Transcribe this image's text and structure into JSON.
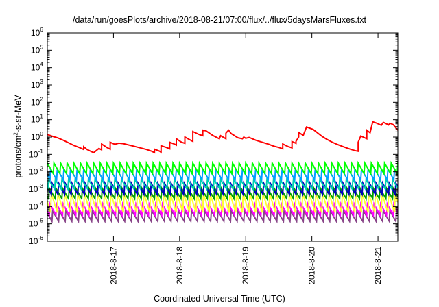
{
  "chart_data": {
    "type": "line",
    "title": "/data/run/goesPlots/archive/2018-08-21/07:00/flux/../flux/5daysMarsFluxes.txt",
    "xlabel": "Coordinated Universal Time (UTC)",
    "ylabel": {
      "prefix": "protons/cm",
      "sup": "2",
      "suffix": "-s-sr-MeV"
    },
    "y_scale": "log",
    "ylim": [
      1e-06,
      1000000.0
    ],
    "y_ticks": [
      {
        "base": "10",
        "exp": "-6",
        "value": -6
      },
      {
        "base": "10",
        "exp": "-5",
        "value": -5
      },
      {
        "base": "10",
        "exp": "-4",
        "value": -4
      },
      {
        "base": "10",
        "exp": "-3",
        "value": -3
      },
      {
        "base": "10",
        "exp": "-2",
        "value": -2
      },
      {
        "base": "10",
        "exp": "-1",
        "value": -1
      },
      {
        "base": "10",
        "exp": "0",
        "value": 0
      },
      {
        "base": "10",
        "exp": "1",
        "value": 1
      },
      {
        "base": "10",
        "exp": "2",
        "value": 2
      },
      {
        "base": "10",
        "exp": "3",
        "value": 3
      },
      {
        "base": "10",
        "exp": "4",
        "value": 4
      },
      {
        "base": "10",
        "exp": "5",
        "value": 5
      },
      {
        "base": "10",
        "exp": "6",
        "value": 6
      }
    ],
    "xlim_days": [
      0,
      5.3
    ],
    "x_ticks": [
      {
        "label": "2018-8-17",
        "day": 1
      },
      {
        "label": "2018-8-18",
        "day": 2
      },
      {
        "label": "2018-8-19",
        "day": 3
      },
      {
        "label": "2018-8-20",
        "day": 4
      },
      {
        "label": "2018-8-21",
        "day": 5
      }
    ],
    "grid": false,
    "series": [
      {
        "color": "#ff0000",
        "points": [
          [
            0.0,
            0.15
          ],
          [
            0.08,
            0.04
          ],
          [
            0.16,
            -0.05
          ],
          [
            0.24,
            -0.18
          ],
          [
            0.32,
            -0.33
          ],
          [
            0.4,
            -0.48
          ],
          [
            0.48,
            -0.6
          ],
          [
            0.55,
            -0.72
          ],
          [
            0.55,
            -0.56
          ],
          [
            0.6,
            -0.72
          ],
          [
            0.66,
            -0.83
          ],
          [
            0.7,
            -0.9
          ],
          [
            0.78,
            -0.66
          ],
          [
            0.82,
            -0.74
          ],
          [
            0.82,
            -0.4
          ],
          [
            0.9,
            -0.6
          ],
          [
            0.95,
            -0.7
          ],
          [
            0.95,
            -0.3
          ],
          [
            1.02,
            -0.42
          ],
          [
            1.08,
            -0.35
          ],
          [
            1.15,
            -0.38
          ],
          [
            1.3,
            -0.52
          ],
          [
            1.4,
            -0.62
          ],
          [
            1.5,
            -0.72
          ],
          [
            1.58,
            -0.82
          ],
          [
            1.62,
            -0.9
          ],
          [
            1.62,
            -0.7
          ],
          [
            1.7,
            -0.82
          ],
          [
            1.72,
            -0.88
          ],
          [
            1.72,
            -0.5
          ],
          [
            1.8,
            -0.6
          ],
          [
            1.85,
            -0.68
          ],
          [
            1.85,
            -0.3
          ],
          [
            1.93,
            -0.42
          ],
          [
            1.95,
            -0.46
          ],
          [
            1.95,
            -0.1
          ],
          [
            2.03,
            -0.3
          ],
          [
            2.08,
            -0.36
          ],
          [
            2.08,
            0.0
          ],
          [
            2.15,
            -0.15
          ],
          [
            2.2,
            -0.25
          ],
          [
            2.2,
            0.32
          ],
          [
            2.3,
            0.14
          ],
          [
            2.35,
            0.08
          ],
          [
            2.35,
            0.4
          ],
          [
            2.4,
            0.36
          ],
          [
            2.5,
            0.1
          ],
          [
            2.6,
            -0.1
          ],
          [
            2.62,
            0.08
          ],
          [
            2.7,
            -0.1
          ],
          [
            2.7,
            0.22
          ],
          [
            2.74,
            0.4
          ],
          [
            2.78,
            0.2
          ],
          [
            2.88,
            -0.04
          ],
          [
            2.95,
            -0.1
          ],
          [
            2.97,
            0.0
          ],
          [
            3.0,
            -0.07
          ],
          [
            3.05,
            -0.02
          ],
          [
            3.15,
            -0.18
          ],
          [
            3.25,
            -0.3
          ],
          [
            3.35,
            -0.42
          ],
          [
            3.42,
            -0.52
          ],
          [
            3.5,
            -0.6
          ],
          [
            3.56,
            -0.68
          ],
          [
            3.56,
            -0.4
          ],
          [
            3.64,
            -0.55
          ],
          [
            3.7,
            -0.62
          ],
          [
            3.7,
            -0.26
          ],
          [
            3.76,
            -0.36
          ],
          [
            3.76,
            -0.25
          ],
          [
            3.8,
            0.0
          ],
          [
            3.8,
            0.27
          ],
          [
            3.87,
            0.1
          ],
          [
            3.92,
            0.58
          ],
          [
            4.02,
            0.44
          ],
          [
            4.08,
            0.26
          ],
          [
            4.15,
            0.05
          ],
          [
            4.22,
            -0.12
          ],
          [
            4.3,
            -0.28
          ],
          [
            4.38,
            -0.42
          ],
          [
            4.45,
            -0.52
          ],
          [
            4.52,
            -0.62
          ],
          [
            4.58,
            -0.7
          ],
          [
            4.65,
            -0.78
          ],
          [
            4.7,
            -0.82
          ],
          [
            4.7,
            -0.3
          ],
          [
            4.74,
            0.06
          ],
          [
            4.83,
            -0.1
          ],
          [
            4.83,
            0.4
          ],
          [
            4.88,
            0.25
          ],
          [
            4.92,
            0.88
          ],
          [
            4.98,
            0.8
          ],
          [
            5.05,
            0.68
          ],
          [
            5.08,
            0.85
          ],
          [
            5.12,
            0.78
          ],
          [
            5.16,
            0.7
          ],
          [
            5.18,
            0.8
          ],
          [
            5.23,
            0.72
          ],
          [
            5.26,
            0.58
          ],
          [
            5.3,
            0.4
          ]
        ]
      },
      {
        "color": "#00ff00",
        "saw": {
          "top": -1.5,
          "bottom": -2.1,
          "period": 0.1,
          "phase": 0.0
        }
      },
      {
        "color": "#00a0ff",
        "saw": {
          "top": -1.85,
          "bottom": -2.45,
          "period": 0.1,
          "phase": 0.05
        }
      },
      {
        "color": "#00d0b0",
        "saw": {
          "top": -2.45,
          "bottom": -3.0,
          "period": 0.1,
          "phase": 0.02
        }
      },
      {
        "color": "#0000c0",
        "saw": {
          "top": -2.65,
          "bottom": -3.3,
          "period": 0.1,
          "phase": 0.07
        }
      },
      {
        "color": "#00a000",
        "saw": {
          "top": -2.95,
          "bottom": -3.55,
          "period": 0.1,
          "phase": 0.03
        }
      },
      {
        "color": "#ffff33",
        "saw": {
          "top": -3.25,
          "bottom": -4.35,
          "period": 0.1,
          "phase": 0.06
        }
      },
      {
        "color": "#ff00ff",
        "saw": {
          "top": -3.85,
          "bottom": -4.5,
          "period": 0.1,
          "phase": 0.04
        }
      },
      {
        "color": "#884488",
        "saw": {
          "top": -4.25,
          "bottom": -4.85,
          "period": 0.1,
          "phase": 0.08
        }
      }
    ]
  }
}
